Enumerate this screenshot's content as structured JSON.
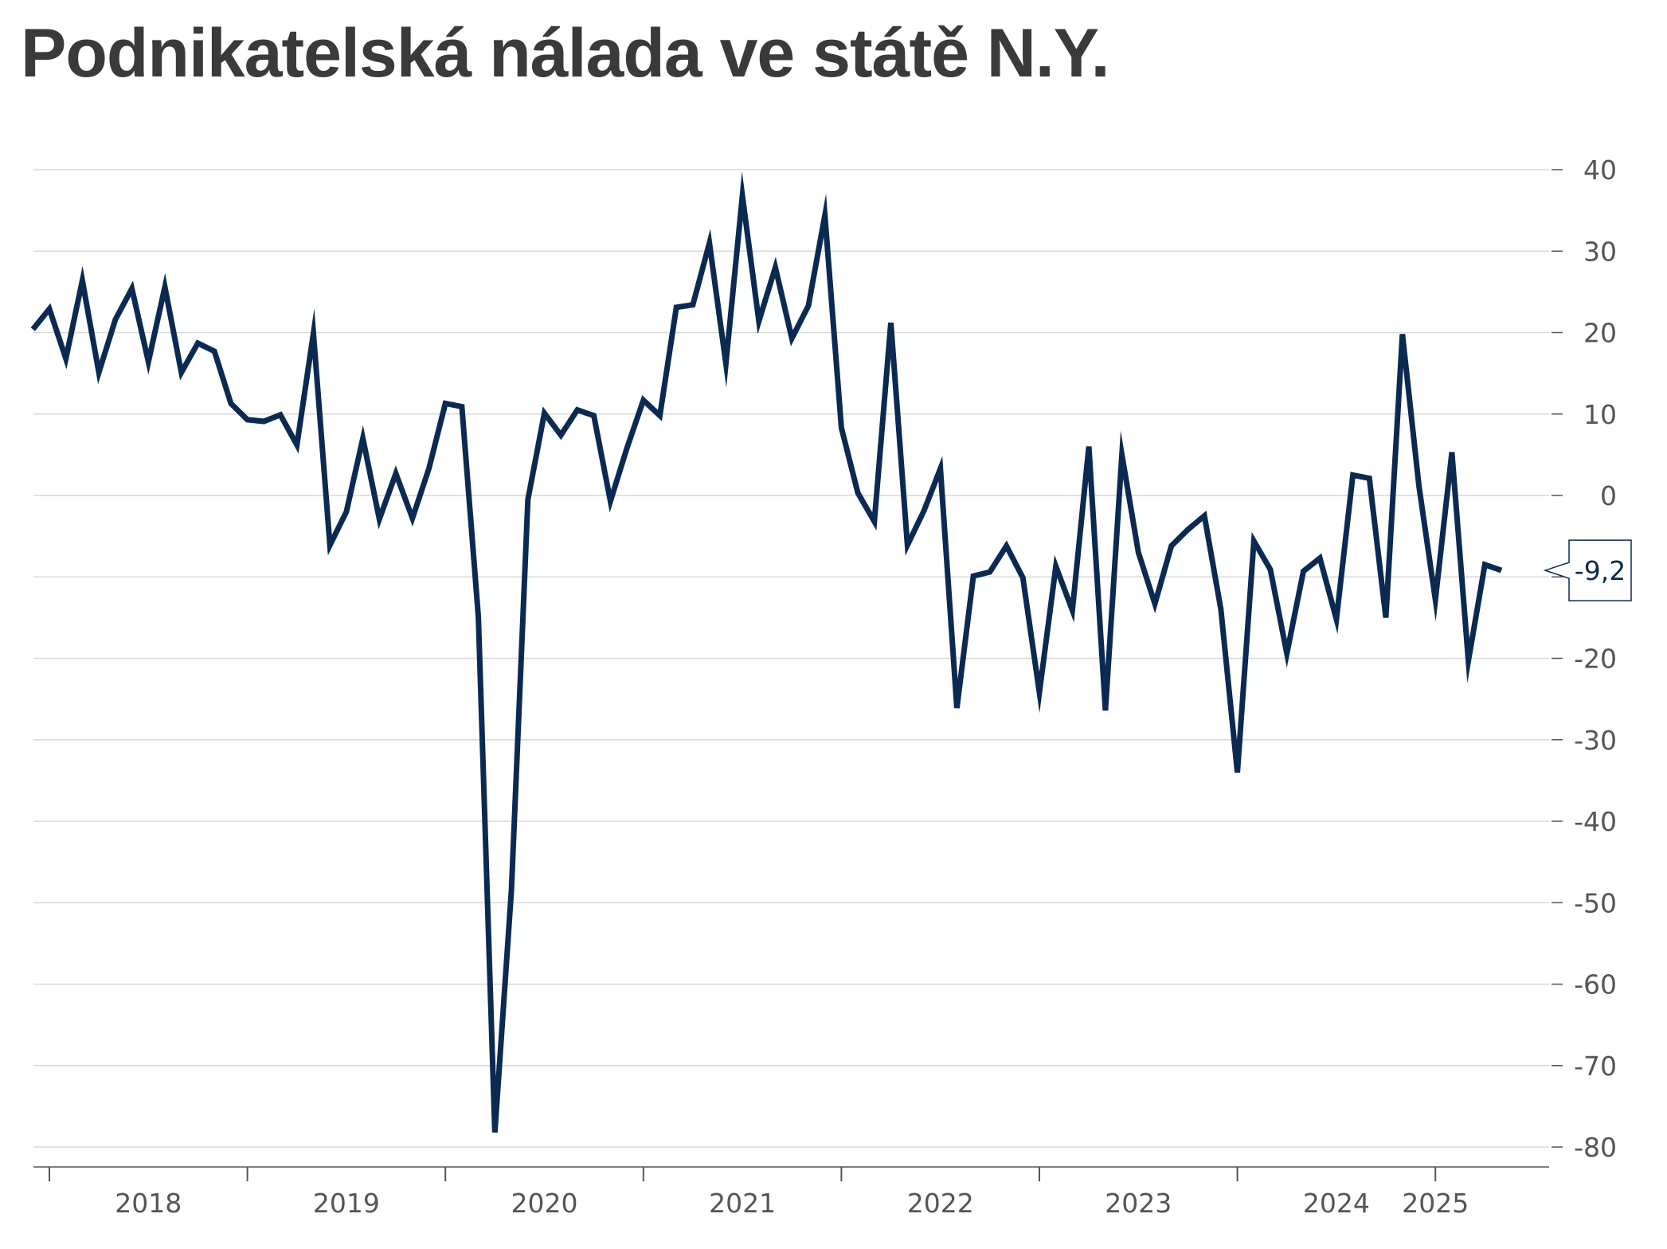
{
  "title": "Podnikatelská nálada ve státě N.Y.",
  "colors": {
    "line": "#0b2a52",
    "grid": "#d9d9d9",
    "axis": "#555555",
    "title": "#3a3a3a"
  },
  "last_value_label": "-9,2",
  "chart_data": {
    "type": "line",
    "title": "Podnikatelská nálada ve státě N.Y.",
    "xlabel": "",
    "ylabel": "",
    "ylim": [
      -80,
      40
    ],
    "yticks": [
      40,
      30,
      20,
      10,
      0,
      -10,
      -20,
      -30,
      -40,
      -50,
      -60,
      -70,
      -80
    ],
    "xticks": [
      "2018",
      "2019",
      "2020",
      "2021",
      "2022",
      "2023",
      "2024",
      "2025"
    ],
    "grid": true,
    "legend": "none",
    "y_axis_side": "right",
    "series": [
      {
        "x_start": "2017-12",
        "values": [
          20.4,
          22.9,
          16.8,
          26.4,
          15.1,
          21.6,
          25.4,
          16.4,
          25.6,
          15.1,
          18.7,
          17.7,
          11.3,
          9.3,
          9.1,
          9.9,
          6.2,
          19.9,
          -6.1,
          -2.0,
          7.0,
          -2.9,
          2.7,
          -2.8,
          3.3,
          11.3,
          10.9,
          -14.9,
          -78.2,
          -48.5,
          -0.5,
          10.1,
          7.4,
          10.5,
          9.8,
          -0.7,
          5.8,
          11.7,
          9.8,
          23.1,
          23.4,
          31.0,
          16.2,
          36.8,
          21.4,
          28.0,
          19.3,
          23.3,
          34.4,
          8.3,
          0.3,
          -3.2,
          21.2,
          -6.1,
          -1.9,
          3.3,
          -26.1,
          -9.9,
          -9.4,
          -6.2,
          -10.1,
          -24.2,
          -8.7,
          -14.1,
          6.0,
          -26.4,
          5.0,
          -7.0,
          -13.3,
          -6.2,
          -4.2,
          -2.5,
          -14.0,
          -34.0,
          -5.6,
          -9.1,
          -19.4,
          -9.3,
          -7.7,
          -15.2,
          2.5,
          2.1,
          -15.0,
          19.8,
          1.2,
          -12.8,
          5.3,
          -20.3,
          -8.5,
          -9.2
        ]
      }
    ]
  }
}
